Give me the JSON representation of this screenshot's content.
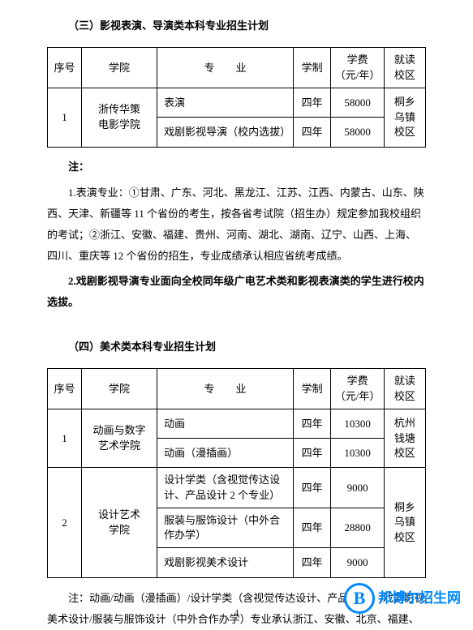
{
  "section3": {
    "title": "（三）影视表演、导演类本科专业招生计划",
    "table": {
      "headers": {
        "seq": "序号",
        "college": "学院",
        "major": "专　　业",
        "duration": "学制",
        "fee": "学费\n（元/年）",
        "campus": "就读\n校区"
      },
      "rows": [
        {
          "seq": "1",
          "college": "浙传华策\n电影学院",
          "majors": [
            {
              "name": "表演",
              "duration": "四年",
              "fee": "58000"
            },
            {
              "name": "戏剧影视导演（校内选拔）",
              "duration": "四年",
              "fee": "58000"
            }
          ],
          "campus": "桐乡\n乌镇\n校区"
        }
      ]
    },
    "note_label": "注：",
    "notes": [
      "1.表演专业：①甘肃、广东、河北、黑龙江、江苏、江西、内蒙古、山东、陕西、天津、新疆等 11 个省份的考生，按各省考试院（招生办）规定参加我校组织的考试；②浙江、安徽、福建、贵州、河南、湖北、湖南、辽宁、山西、上海、四川、重庆等 12 个省份的招生，专业成绩承认相应省统考成绩。",
      "2.戏剧影视导演专业面向全校同年级广电艺术类和影视表演类的学生进行校内选拔。"
    ]
  },
  "section4": {
    "title": "（四）美术类本科专业招生计划",
    "table": {
      "headers": {
        "seq": "序号",
        "college": "学院",
        "major": "专　　业",
        "duration": "学制",
        "fee": "学费\n（元/年）",
        "campus": "就读\n校区"
      },
      "rows": [
        {
          "seq": "1",
          "college": "动画与数字\n艺术学院",
          "majors": [
            {
              "name": "动画",
              "duration": "四年",
              "fee": "10300"
            },
            {
              "name": "动画（漫插画）",
              "duration": "四年",
              "fee": "10300"
            }
          ],
          "campus": "杭州\n钱塘\n校区"
        },
        {
          "seq": "2",
          "college": "设计艺术\n学院",
          "majors": [
            {
              "name": "设计学类（含视觉传达设计、产品设计 2 个专业）",
              "duration": "四年",
              "fee": "9000"
            },
            {
              "name": "服装与服饰设计（中外合作办学）",
              "duration": "四年",
              "fee": "28800"
            },
            {
              "name": "戏剧影视美术设计",
              "duration": "四年",
              "fee": "9000"
            }
          ],
          "campus": "桐乡\n乌镇\n校区"
        }
      ]
    },
    "note": "注：动画/动画（漫插画）/设计学类（含视觉传达设计、产品设计）/戏剧影视美术设计/服装与服饰设计（中外合作办学）专业承认浙江、安徽、北京、福建、"
  },
  "watermark": {
    "logo": "B",
    "text": "邦博尔招生网"
  },
  "page_number": "4",
  "colors": {
    "text": "#000000",
    "border": "#000000",
    "background": "#ffffff",
    "watermark": "#0088ff"
  }
}
